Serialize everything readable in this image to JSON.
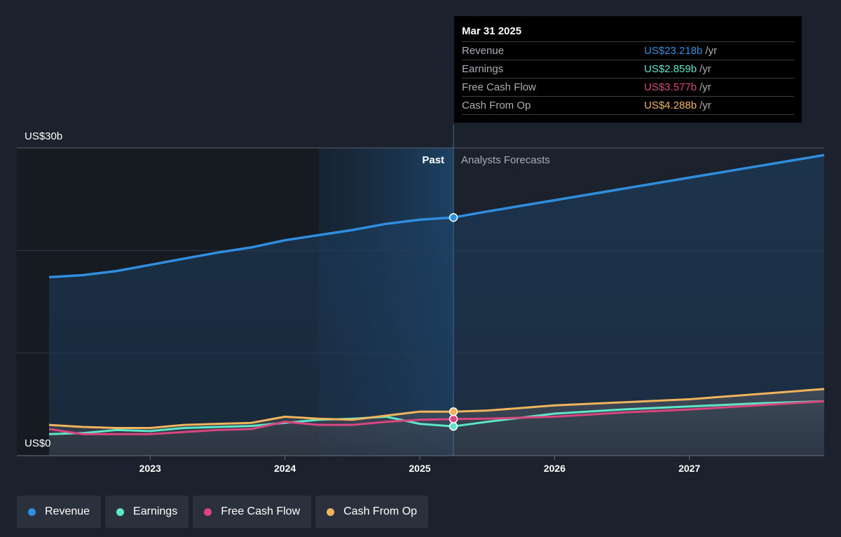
{
  "tooltip": {
    "date": "Mar 31 2025",
    "rows": [
      {
        "name": "Revenue",
        "value": "US$23.218b",
        "unit": "/yr",
        "color": "#2f8ee0"
      },
      {
        "name": "Earnings",
        "value": "US$2.859b",
        "unit": "/yr",
        "color": "#5ee6c8"
      },
      {
        "name": "Free Cash Flow",
        "value": "US$3.577b",
        "unit": "/yr",
        "color": "#d9467f"
      },
      {
        "name": "Cash From Op",
        "value": "US$4.288b",
        "unit": "/yr",
        "color": "#f0b45a"
      }
    ]
  },
  "legend": [
    {
      "label": "Revenue",
      "color": "#2f8ee0"
    },
    {
      "label": "Earnings",
      "color": "#5ee6c8"
    },
    {
      "label": "Free Cash Flow",
      "color": "#d9467f"
    },
    {
      "label": "Cash From Op",
      "color": "#f0b45a"
    }
  ],
  "chart_data": {
    "type": "line",
    "y_axis": {
      "top_label": "US$30b",
      "bottom_label": "US$0",
      "ylim": [
        0,
        30
      ],
      "unit": "US$b"
    },
    "x_ticks": [
      "2023",
      "2024",
      "2025",
      "2026",
      "2027"
    ],
    "xlim": [
      2022.25,
      2028.0
    ],
    "regions": {
      "past_label": "Past",
      "forecast_label": "Analysts Forecasts",
      "highlight_start": 2024.25,
      "divider": 2025.25
    },
    "series": [
      {
        "name": "Revenue",
        "color": "#2f8ee0",
        "filled": true,
        "points": [
          [
            2022.25,
            17.4
          ],
          [
            2022.5,
            17.6
          ],
          [
            2022.75,
            18.0
          ],
          [
            2023.0,
            18.6
          ],
          [
            2023.25,
            19.2
          ],
          [
            2023.5,
            19.8
          ],
          [
            2023.75,
            20.3
          ],
          [
            2024.0,
            21.0
          ],
          [
            2024.25,
            21.5
          ],
          [
            2024.5,
            22.0
          ],
          [
            2024.75,
            22.6
          ],
          [
            2025.0,
            23.0
          ],
          [
            2025.25,
            23.218
          ],
          [
            2025.5,
            23.8
          ],
          [
            2026.0,
            24.9
          ],
          [
            2026.5,
            26.0
          ],
          [
            2027.0,
            27.1
          ],
          [
            2027.5,
            28.2
          ],
          [
            2028.0,
            29.3
          ]
        ]
      },
      {
        "name": "Earnings",
        "color": "#5ee6c8",
        "points": [
          [
            2022.25,
            2.1
          ],
          [
            2022.5,
            2.2
          ],
          [
            2022.75,
            2.5
          ],
          [
            2023.0,
            2.4
          ],
          [
            2023.25,
            2.7
          ],
          [
            2023.5,
            2.8
          ],
          [
            2023.75,
            2.9
          ],
          [
            2024.0,
            3.2
          ],
          [
            2024.25,
            3.5
          ],
          [
            2024.5,
            3.6
          ],
          [
            2024.75,
            3.8
          ],
          [
            2025.0,
            3.1
          ],
          [
            2025.25,
            2.859
          ],
          [
            2025.5,
            3.3
          ],
          [
            2026.0,
            4.1
          ],
          [
            2026.5,
            4.5
          ],
          [
            2027.0,
            4.8
          ],
          [
            2027.5,
            5.1
          ],
          [
            2028.0,
            5.3
          ]
        ]
      },
      {
        "name": "Free Cash Flow",
        "color": "#d9467f",
        "points": [
          [
            2022.25,
            2.6
          ],
          [
            2022.5,
            2.1
          ],
          [
            2022.75,
            2.1
          ],
          [
            2023.0,
            2.1
          ],
          [
            2023.25,
            2.3
          ],
          [
            2023.5,
            2.5
          ],
          [
            2023.75,
            2.6
          ],
          [
            2024.0,
            3.3
          ],
          [
            2024.25,
            3.0
          ],
          [
            2024.5,
            3.0
          ],
          [
            2024.75,
            3.3
          ],
          [
            2025.0,
            3.5
          ],
          [
            2025.25,
            3.577
          ],
          [
            2025.5,
            3.6
          ],
          [
            2026.0,
            3.8
          ],
          [
            2026.5,
            4.2
          ],
          [
            2027.0,
            4.5
          ],
          [
            2027.5,
            4.9
          ],
          [
            2028.0,
            5.3
          ]
        ]
      },
      {
        "name": "Cash From Op",
        "color": "#f0b45a",
        "points": [
          [
            2022.25,
            3.0
          ],
          [
            2022.5,
            2.8
          ],
          [
            2022.75,
            2.7
          ],
          [
            2023.0,
            2.7
          ],
          [
            2023.25,
            3.0
          ],
          [
            2023.5,
            3.1
          ],
          [
            2023.75,
            3.2
          ],
          [
            2024.0,
            3.8
          ],
          [
            2024.25,
            3.6
          ],
          [
            2024.5,
            3.5
          ],
          [
            2024.75,
            3.9
          ],
          [
            2025.0,
            4.3
          ],
          [
            2025.25,
            4.288
          ],
          [
            2025.5,
            4.4
          ],
          [
            2026.0,
            4.9
          ],
          [
            2026.5,
            5.2
          ],
          [
            2027.0,
            5.5
          ],
          [
            2027.5,
            6.0
          ],
          [
            2028.0,
            6.5
          ]
        ]
      }
    ],
    "grid": true
  }
}
